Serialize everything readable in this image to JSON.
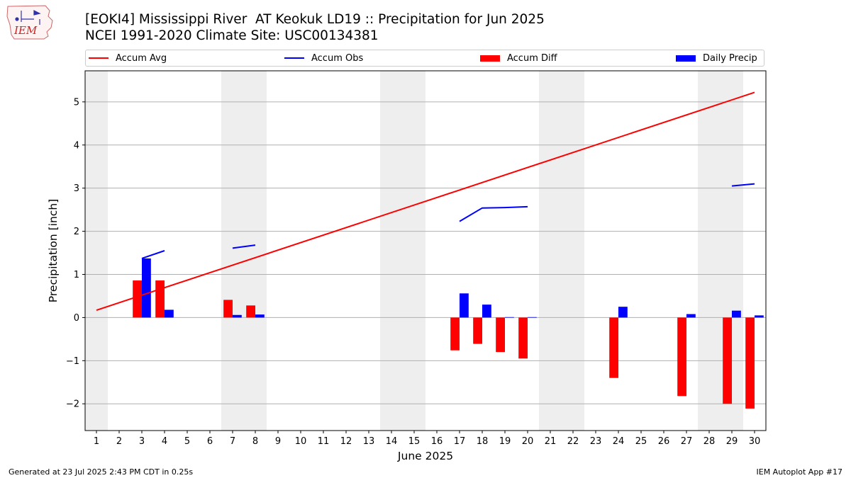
{
  "header": {
    "title_line1": "[EOKI4] Mississippi River  AT Keokuk LD19 :: Precipitation for Jun 2025",
    "title_line2": "NCEI 1991-2020 Climate Site: USC00134381"
  },
  "logo": {
    "text": "IEM"
  },
  "legend": {
    "items": [
      {
        "label": "Accum Avg",
        "kind": "line",
        "color": "#ff0000"
      },
      {
        "label": "Accum Obs",
        "kind": "line",
        "color": "#0000ff"
      },
      {
        "label": "Accum Diff",
        "kind": "patch",
        "color": "#ff0000"
      },
      {
        "label": "Daily Precip",
        "kind": "patch",
        "color": "#0000ff"
      }
    ]
  },
  "footer": {
    "left": "Generated at 23 Jul 2025 2:43 PM CDT in 0.25s",
    "right": "IEM Autoplot App #17"
  },
  "chart_data": {
    "type": "bar",
    "xlabel": "June 2025",
    "ylabel": "Precipitation [inch]",
    "xlim": [
      0.5,
      30.5
    ],
    "ylim": [
      -2.62,
      5.72
    ],
    "yticks": [
      -2,
      -1,
      0,
      1,
      2,
      3,
      4,
      5
    ],
    "ytick_labels": [
      "−2",
      "−1",
      "0",
      "1",
      "2",
      "3",
      "4",
      "5"
    ],
    "days": [
      1,
      2,
      3,
      4,
      5,
      6,
      7,
      8,
      9,
      10,
      11,
      12,
      13,
      14,
      15,
      16,
      17,
      18,
      19,
      20,
      21,
      22,
      23,
      24,
      25,
      26,
      27,
      28,
      29,
      30
    ],
    "grid": "horizontal",
    "weekend_shading": [
      [
        0.5,
        1.5
      ],
      [
        6.5,
        8.5
      ],
      [
        13.5,
        15.5
      ],
      [
        20.5,
        22.5
      ],
      [
        27.5,
        29.5
      ]
    ],
    "colors": {
      "avg": "#ff0000",
      "obs": "#0000ff",
      "diff": "#ff0000",
      "daily": "#0000ff",
      "shade": "#eeeeee"
    },
    "series": [
      {
        "name": "Accum Avg",
        "kind": "line",
        "points": [
          [
            1,
            0.17
          ],
          [
            30,
            5.22
          ]
        ]
      },
      {
        "name": "Accum Obs",
        "kind": "line",
        "segments": [
          [
            [
              3,
              1.37
            ],
            [
              4,
              1.55
            ]
          ],
          [
            [
              7,
              1.61
            ],
            [
              8,
              1.68
            ]
          ],
          [
            [
              17,
              2.23
            ],
            [
              18,
              2.54
            ],
            [
              19,
              2.55
            ],
            [
              20,
              2.57
            ]
          ],
          [
            [
              29,
              3.05
            ],
            [
              30,
              3.1
            ]
          ]
        ]
      },
      {
        "name": "Accum Diff",
        "kind": "bar",
        "values": [
          [
            3,
            0.86
          ],
          [
            4,
            0.86
          ],
          [
            7,
            0.41
          ],
          [
            8,
            0.28
          ],
          [
            17,
            -0.76
          ],
          [
            18,
            -0.61
          ],
          [
            19,
            -0.8
          ],
          [
            20,
            -0.95
          ],
          [
            24,
            -1.4
          ],
          [
            27,
            -1.82
          ],
          [
            29,
            -2.0
          ],
          [
            30,
            -2.11
          ]
        ]
      },
      {
        "name": "Daily Precip",
        "kind": "bar",
        "values": [
          [
            3,
            1.37
          ],
          [
            4,
            0.18
          ],
          [
            7,
            0.06
          ],
          [
            8,
            0.07
          ],
          [
            17,
            0.56
          ],
          [
            18,
            0.3
          ],
          [
            19,
            0.01
          ],
          [
            20,
            0.01
          ],
          [
            24,
            0.25
          ],
          [
            27,
            0.08
          ],
          [
            29,
            0.16
          ],
          [
            30,
            0.05
          ]
        ]
      }
    ]
  }
}
